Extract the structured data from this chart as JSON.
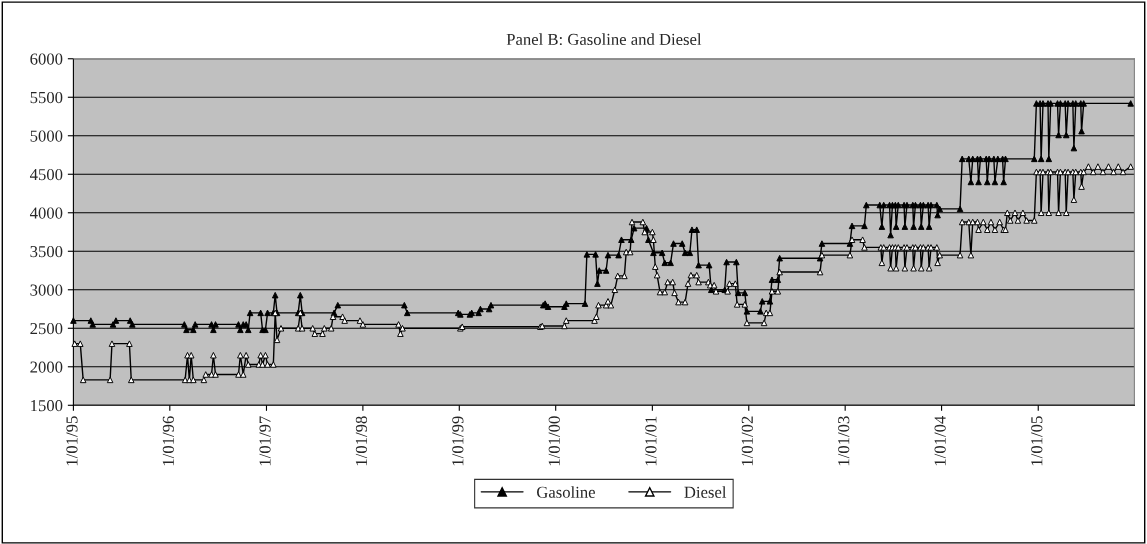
{
  "chart_data": {
    "type": "line",
    "title": "Panel B: Gasoline and Diesel",
    "xlim": [
      "1995-01-01",
      "2005-12-31"
    ],
    "xticks": [
      {
        "value": "1995-01-01",
        "label": "1/01/95"
      },
      {
        "value": "1996-01-01",
        "label": "1/01/96"
      },
      {
        "value": "1997-01-01",
        "label": "1/01/97"
      },
      {
        "value": "1998-01-01",
        "label": "1/01/98"
      },
      {
        "value": "1999-01-01",
        "label": "1/01/99"
      },
      {
        "value": "2000-01-01",
        "label": "1/01/00"
      },
      {
        "value": "2001-01-01",
        "label": "1/01/01"
      },
      {
        "value": "2002-01-01",
        "label": "1/01/02"
      },
      {
        "value": "2003-01-01",
        "label": "1/01/03"
      },
      {
        "value": "2004-01-01",
        "label": "1/01/04"
      },
      {
        "value": "2005-01-01",
        "label": "1/01/05"
      }
    ],
    "ylim": [
      1500,
      6000
    ],
    "yticks": [
      1500,
      2000,
      2500,
      3000,
      3500,
      4000,
      4500,
      5000,
      5500,
      6000
    ],
    "grid": "y",
    "legend": "bottom",
    "marker": "triangle",
    "line_style": "solid",
    "series": [
      {
        "name": "Gasoline",
        "color": "#000000",
        "x": [
          "1995-01-01",
          "1995-03-08",
          "1995-03-15",
          "1995-05-31",
          "1995-06-11",
          "1995-08-04",
          "1995-08-12",
          "1996-02-25",
          "1996-03-04",
          "1996-03-30",
          "1996-04-06",
          "1996-06-07",
          "1996-06-14",
          "1996-06-22",
          "1996-09-17",
          "1996-09-24",
          "1996-10-05",
          "1996-10-16",
          "1996-10-24",
          "1996-10-31",
          "1996-12-10",
          "1996-12-17",
          "1996-12-28",
          "1997-01-05",
          "1997-01-27",
          "1997-02-03",
          "1997-02-10",
          "1997-05-01",
          "1997-05-09",
          "1997-05-16",
          "1997-09-14",
          "1997-09-28",
          "1998-06-07",
          "1998-06-18",
          "1998-12-28",
          "1999-01-05",
          "1999-02-10",
          "1999-02-17",
          "1999-03-15",
          "1999-03-22",
          "1999-04-24",
          "1999-05-01",
          "1999-11-15",
          "1999-11-22",
          "1999-12-03",
          "2000-02-03",
          "2000-02-10",
          "2000-04-21",
          "2000-04-28",
          "2000-05-31",
          "2000-06-07",
          "2000-06-14",
          "2000-07-10",
          "2000-07-17",
          "2000-08-26",
          "2000-09-06",
          "2000-10-13",
          "2000-10-24",
          "2000-12-10",
          "2000-12-17",
          "2001-01-05",
          "2001-02-07",
          "2001-02-17",
          "2001-03-11",
          "2001-03-22",
          "2001-04-24",
          "2001-05-05",
          "2001-05-23",
          "2001-05-31",
          "2001-06-18",
          "2001-06-25",
          "2001-08-04",
          "2001-08-12",
          "2001-10-02",
          "2001-10-09",
          "2001-11-15",
          "2001-11-22",
          "2001-12-17",
          "2001-12-25",
          "2002-02-14",
          "2002-02-21",
          "2002-03-22",
          "2002-03-30",
          "2002-04-21",
          "2002-04-28",
          "2002-09-28",
          "2002-10-05",
          "2003-01-19",
          "2003-01-27",
          "2003-03-15",
          "2003-03-22",
          "2003-05-12",
          "2003-05-20",
          "2003-05-27",
          "2003-06-18",
          "2003-06-22",
          "2003-06-29",
          "2003-07-10",
          "2003-07-13",
          "2003-07-21",
          "2003-08-12",
          "2003-08-15",
          "2003-08-23",
          "2003-09-14",
          "2003-09-17",
          "2003-09-24",
          "2003-10-13",
          "2003-10-16",
          "2003-10-24",
          "2003-11-11",
          "2003-11-15",
          "2003-11-22",
          "2003-12-14",
          "2003-12-17",
          "2003-12-25",
          "2004-03-11",
          "2004-03-19",
          "2004-04-13",
          "2004-04-21",
          "2004-04-28",
          "2004-05-16",
          "2004-05-20",
          "2004-05-27",
          "2004-06-18",
          "2004-06-22",
          "2004-06-29",
          "2004-07-17",
          "2004-07-21",
          "2004-08-01",
          "2004-08-19",
          "2004-08-23",
          "2004-08-30",
          "2004-12-17",
          "2004-12-25",
          "2005-01-08",
          "2005-01-12",
          "2005-01-19",
          "2005-02-07",
          "2005-02-10",
          "2005-02-17",
          "2005-03-15",
          "2005-03-19",
          "2005-03-26",
          "2005-04-13",
          "2005-04-17",
          "2005-04-24",
          "2005-05-12",
          "2005-05-16",
          "2005-05-23",
          "2005-06-11",
          "2005-06-14",
          "2005-06-22",
          "2005-12-17"
        ],
        "values": [
          2600,
          2600,
          2550,
          2550,
          2600,
          2600,
          2550,
          2550,
          2480,
          2480,
          2550,
          2550,
          2480,
          2550,
          2550,
          2480,
          2550,
          2550,
          2480,
          2700,
          2700,
          2480,
          2480,
          2700,
          2700,
          2930,
          2700,
          2700,
          2930,
          2700,
          2700,
          2800,
          2800,
          2700,
          2700,
          2680,
          2680,
          2700,
          2700,
          2750,
          2750,
          2800,
          2800,
          2820,
          2780,
          2780,
          2820,
          2820,
          3460,
          3460,
          3080,
          3250,
          3250,
          3450,
          3450,
          3650,
          3650,
          3800,
          3800,
          3650,
          3480,
          3480,
          3350,
          3350,
          3600,
          3600,
          3480,
          3480,
          3780,
          3780,
          3320,
          3320,
          3000,
          3000,
          3360,
          3360,
          2960,
          2960,
          2720,
          2720,
          2850,
          2850,
          3130,
          3130,
          3410,
          3410,
          3600,
          3600,
          3830,
          3830,
          4100,
          4100,
          3820,
          4100,
          4100,
          3710,
          4100,
          4100,
          3820,
          4100,
          4100,
          3820,
          4100,
          4100,
          3820,
          4100,
          4100,
          3820,
          4100,
          4100,
          3820,
          4100,
          4100,
          3970,
          4050,
          4050,
          4700,
          4700,
          4400,
          4700,
          4700,
          4400,
          4700,
          4700,
          4400,
          4700,
          4700,
          4400,
          4700,
          4700,
          4400,
          4700,
          4700,
          5420,
          5420,
          4700,
          5420,
          5420,
          4700,
          5420,
          5420,
          5010,
          5420,
          5420,
          5010,
          5420,
          5420,
          4840,
          5420,
          5420,
          5060,
          5420,
          5420
        ]
      },
      {
        "name": "Diesel",
        "color": "#000000",
        "x": [
          "1995-01-06",
          "1995-01-27",
          "1995-02-07",
          "1995-05-20",
          "1995-05-27",
          "1995-08-01",
          "1995-08-08",
          "1996-02-28",
          "1996-03-08",
          "1996-03-15",
          "1996-03-22",
          "1996-03-30",
          "1996-05-09",
          "1996-05-16",
          "1996-06-07",
          "1996-06-14",
          "1996-06-22",
          "1996-09-17",
          "1996-09-24",
          "1996-10-05",
          "1996-10-16",
          "1996-10-24",
          "1996-12-03",
          "1996-12-10",
          "1996-12-17",
          "1996-12-28",
          "1997-01-05",
          "1997-01-27",
          "1997-02-03",
          "1997-02-10",
          "1997-02-25",
          "1997-05-01",
          "1997-05-09",
          "1997-05-16",
          "1997-06-25",
          "1997-07-03",
          "1997-08-01",
          "1997-08-08",
          "1997-09-03",
          "1997-09-10",
          "1997-10-16",
          "1997-10-24",
          "1997-12-21",
          "1998-01-01",
          "1998-05-16",
          "1998-05-23",
          "1998-05-31",
          "1999-01-05",
          "1999-01-12",
          "1999-11-04",
          "1999-11-11",
          "2000-02-03",
          "2000-02-10",
          "2000-05-27",
          "2000-06-03",
          "2000-06-11",
          "2000-07-10",
          "2000-07-17",
          "2000-07-28",
          "2000-08-12",
          "2000-08-23",
          "2000-09-17",
          "2000-09-24",
          "2000-10-09",
          "2000-10-16",
          "2000-11-26",
          "2000-12-03",
          "2001-01-01",
          "2001-01-05",
          "2001-01-12",
          "2001-01-19",
          "2001-01-30",
          "2001-02-17",
          "2001-02-28",
          "2001-03-19",
          "2001-03-26",
          "2001-04-10",
          "2001-05-05",
          "2001-05-16",
          "2001-05-27",
          "2001-06-18",
          "2001-06-25",
          "2001-08-01",
          "2001-08-08",
          "2001-08-23",
          "2001-08-30",
          "2001-10-13",
          "2001-10-20",
          "2001-11-11",
          "2001-11-18",
          "2001-12-17",
          "2001-12-25",
          "2002-02-28",
          "2002-03-08",
          "2002-03-22",
          "2002-03-30",
          "2002-04-21",
          "2002-04-28",
          "2002-09-28",
          "2002-10-05",
          "2003-01-19",
          "2003-01-27",
          "2003-03-08",
          "2003-03-15",
          "2003-05-16",
          "2003-05-20",
          "2003-05-27",
          "2003-06-18",
          "2003-06-22",
          "2003-06-29",
          "2003-07-10",
          "2003-07-13",
          "2003-07-21",
          "2003-08-12",
          "2003-08-15",
          "2003-08-23",
          "2003-09-14",
          "2003-09-17",
          "2003-09-24",
          "2003-10-13",
          "2003-10-16",
          "2003-10-24",
          "2003-11-11",
          "2003-11-15",
          "2003-11-22",
          "2003-12-14",
          "2003-12-17",
          "2003-12-25",
          "2004-03-11",
          "2004-03-19",
          "2004-04-13",
          "2004-04-21",
          "2004-04-28",
          "2004-05-16",
          "2004-05-20",
          "2004-06-07",
          "2004-06-22",
          "2004-07-06",
          "2004-07-21",
          "2004-08-08",
          "2004-08-23",
          "2004-08-30",
          "2004-09-06",
          "2004-09-17",
          "2004-10-05",
          "2004-10-16",
          "2004-11-04",
          "2004-11-18",
          "2004-12-17",
          "2004-12-25",
          "2005-01-08",
          "2005-01-12",
          "2005-01-19",
          "2005-02-07",
          "2005-02-10",
          "2005-02-17",
          "2005-03-15",
          "2005-03-19",
          "2005-03-26",
          "2005-04-13",
          "2005-04-17",
          "2005-04-24",
          "2005-05-12",
          "2005-05-16",
          "2005-05-23",
          "2005-06-11",
          "2005-06-14",
          "2005-06-22",
          "2005-07-10",
          "2005-07-28",
          "2005-08-15",
          "2005-09-03",
          "2005-09-24",
          "2005-10-13",
          "2005-10-31",
          "2005-11-18",
          "2005-12-17"
        ],
        "values": [
          2300,
          2300,
          1830,
          1830,
          2300,
          2300,
          1830,
          1830,
          2150,
          1830,
          2150,
          1830,
          1830,
          1900,
          1900,
          2150,
          1900,
          1900,
          2150,
          1900,
          2150,
          2030,
          2030,
          2150,
          2030,
          2150,
          2030,
          2030,
          2700,
          2350,
          2500,
          2500,
          2700,
          2500,
          2500,
          2430,
          2430,
          2500,
          2500,
          2650,
          2650,
          2600,
          2600,
          2550,
          2550,
          2430,
          2500,
          2500,
          2520,
          2520,
          2530,
          2530,
          2600,
          2600,
          2650,
          2800,
          2800,
          2850,
          2800,
          3000,
          3180,
          3180,
          3490,
          3490,
          3880,
          3880,
          3750,
          3750,
          3650,
          3300,
          3190,
          2970,
          2970,
          3100,
          3100,
          2960,
          2840,
          2840,
          3080,
          3190,
          3190,
          3100,
          3100,
          3060,
          3060,
          2980,
          2980,
          3080,
          3080,
          2810,
          2810,
          2570,
          2570,
          2700,
          2700,
          2980,
          2980,
          3230,
          3230,
          3450,
          3450,
          3650,
          3650,
          3550,
          3550,
          3350,
          3550,
          3550,
          3280,
          3550,
          3550,
          3280,
          3550,
          3550,
          3280,
          3550,
          3550,
          3280,
          3550,
          3550,
          3280,
          3550,
          3550,
          3280,
          3550,
          3550,
          3350,
          3450,
          3450,
          3880,
          3880,
          3450,
          3880,
          3880,
          3780,
          3880,
          3780,
          3880,
          3780,
          3880,
          3780,
          3780,
          4000,
          3900,
          4000,
          3900,
          4000,
          3900,
          3900,
          4530,
          4530,
          4000,
          4530,
          4530,
          4000,
          4530,
          4530,
          4000,
          4530,
          4530,
          4000,
          4530,
          4530,
          4170,
          4530,
          4530,
          4340,
          4530,
          4600,
          4530,
          4600,
          4530,
          4600,
          4530,
          4600,
          4530,
          4600
        ]
      }
    ]
  }
}
